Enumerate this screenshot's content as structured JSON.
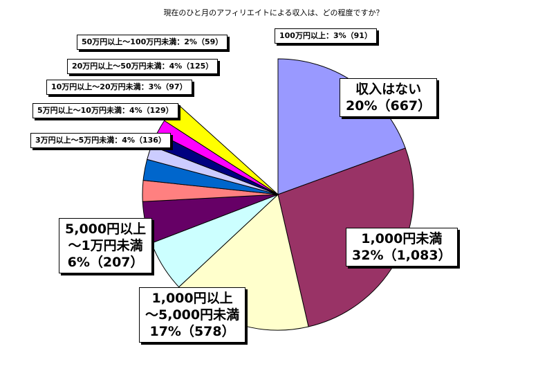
{
  "chart_data": {
    "type": "pie",
    "title": "現在のひと月のアフィリエイトによる収入は、どの程度ですか？",
    "slices": [
      {
        "label_lines": [
          "収入はない",
          "20%（667）"
        ],
        "category": "収入はない",
        "percent": 20,
        "count": 667,
        "color": "#9999ff"
      },
      {
        "label_lines": [
          "1,000円未満",
          "32%（1,083）"
        ],
        "category": "1,000円未満",
        "percent": 32,
        "count": 1083,
        "color": "#993366"
      },
      {
        "label_lines": [
          "1,000円以上",
          "～5,000円未満",
          "17%（578）"
        ],
        "category": "1,000円以上～5,000円未満",
        "percent": 17,
        "count": 578,
        "color": "#ffffcc"
      },
      {
        "label_lines": [
          "5,000円以上",
          "～1万円未満",
          "6%（207）"
        ],
        "category": "5,000円以上～1万円未満",
        "percent": 6,
        "count": 207,
        "color": "#ccffff"
      },
      {
        "label_lines": [
          "3万円以上～5万円未満：4%（136）"
        ],
        "category": "3万円以上～5万円未満",
        "percent": 4,
        "count": 136,
        "color": "#660066"
      },
      {
        "label_lines": [
          "5万円以上～10万円未満：4%（129）"
        ],
        "category": "5万円以上～10万円未満",
        "percent": 4,
        "count": 129,
        "color": "#ff8080"
      },
      {
        "label_lines": [
          "10万円以上～20万円未満：3%（97）"
        ],
        "category": "10万円以上～20万円未満",
        "percent": 3,
        "count": 97,
        "color": "#0066cc"
      },
      {
        "label_lines": [
          "20万円以上～50万円未満：4%（125）"
        ],
        "category": "20万円以上～50万円未満",
        "percent": 4,
        "count": 125,
        "color": "#ccccff"
      },
      {
        "label_lines": [
          "50万円以上～100万円未満：2%（59）"
        ],
        "category": "50万円以上～100万円未満",
        "percent": 2,
        "count": 59,
        "color": "#000080"
      },
      {
        "label_lines": [
          "100万円以上：3%（91）"
        ],
        "category": "100万円以上",
        "percent": 3,
        "count": 91,
        "color": "#ff00ff"
      },
      {
        "label_lines": [],
        "category": "",
        "percent": null,
        "count": null,
        "color": "#ffff00"
      }
    ]
  }
}
